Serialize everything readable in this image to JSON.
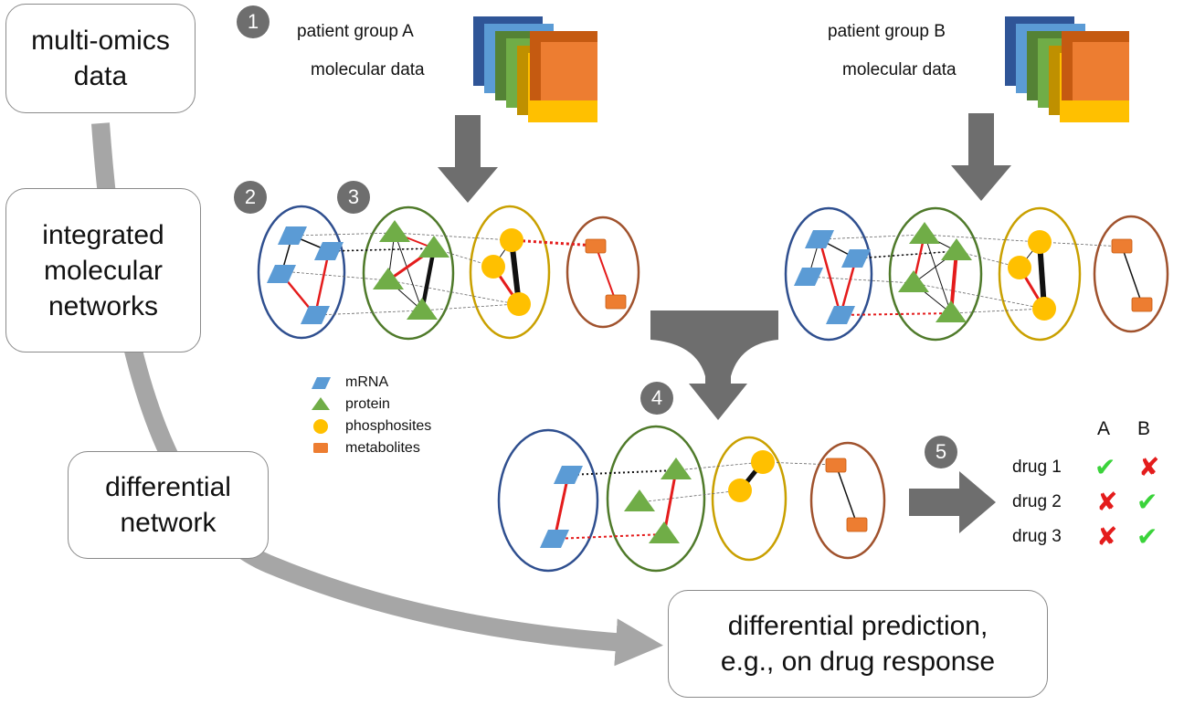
{
  "boxes": {
    "multi_omics": [
      "multi-omics",
      "data"
    ],
    "integrated": [
      "integrated",
      "molecular",
      "networks"
    ],
    "differential": [
      "differential",
      "network"
    ],
    "prediction": [
      "differential prediction,",
      "e.g., on drug response"
    ]
  },
  "steps": [
    "1",
    "2",
    "3",
    "4",
    "5"
  ],
  "group_a": {
    "title": "patient group A",
    "subtitle": "molecular data"
  },
  "group_b": {
    "title": "patient group B",
    "subtitle": "molecular data"
  },
  "legend": [
    {
      "label": "mRNA",
      "shape": "parallelogram-icon",
      "color": "#5b9bd5"
    },
    {
      "label": "protein",
      "shape": "triangle-icon",
      "color": "#70ad47"
    },
    {
      "label": "phosphosites",
      "shape": "circle-icon",
      "color": "#ffc000"
    },
    {
      "label": "metabolites",
      "shape": "rectangle-icon",
      "color": "#ed7d31"
    }
  ],
  "drug_table": {
    "columns": [
      "A",
      "B"
    ],
    "rows": [
      {
        "drug": "drug 1",
        "A": "✔",
        "B": "✘"
      },
      {
        "drug": "drug 2",
        "A": "✘",
        "B": "✔"
      },
      {
        "drug": "drug 3",
        "A": "✘",
        "B": "✔"
      }
    ]
  },
  "colors": {
    "mrna": "#5b9bd5",
    "protein": "#70ad47",
    "phosphosite": "#ffc000",
    "metabolite": "#ed7d31",
    "mrna_ring": "#2f4f8f",
    "protein_ring": "#4f7a2a",
    "phospho_ring": "#c9a000",
    "metab_ring": "#a0522d",
    "positive_edge": "#e41c1c",
    "arrow_gray": "#6e6e6e",
    "flow_gray": "#a6a6a6",
    "check": "#3ad33a",
    "cross": "#e41c1c"
  }
}
